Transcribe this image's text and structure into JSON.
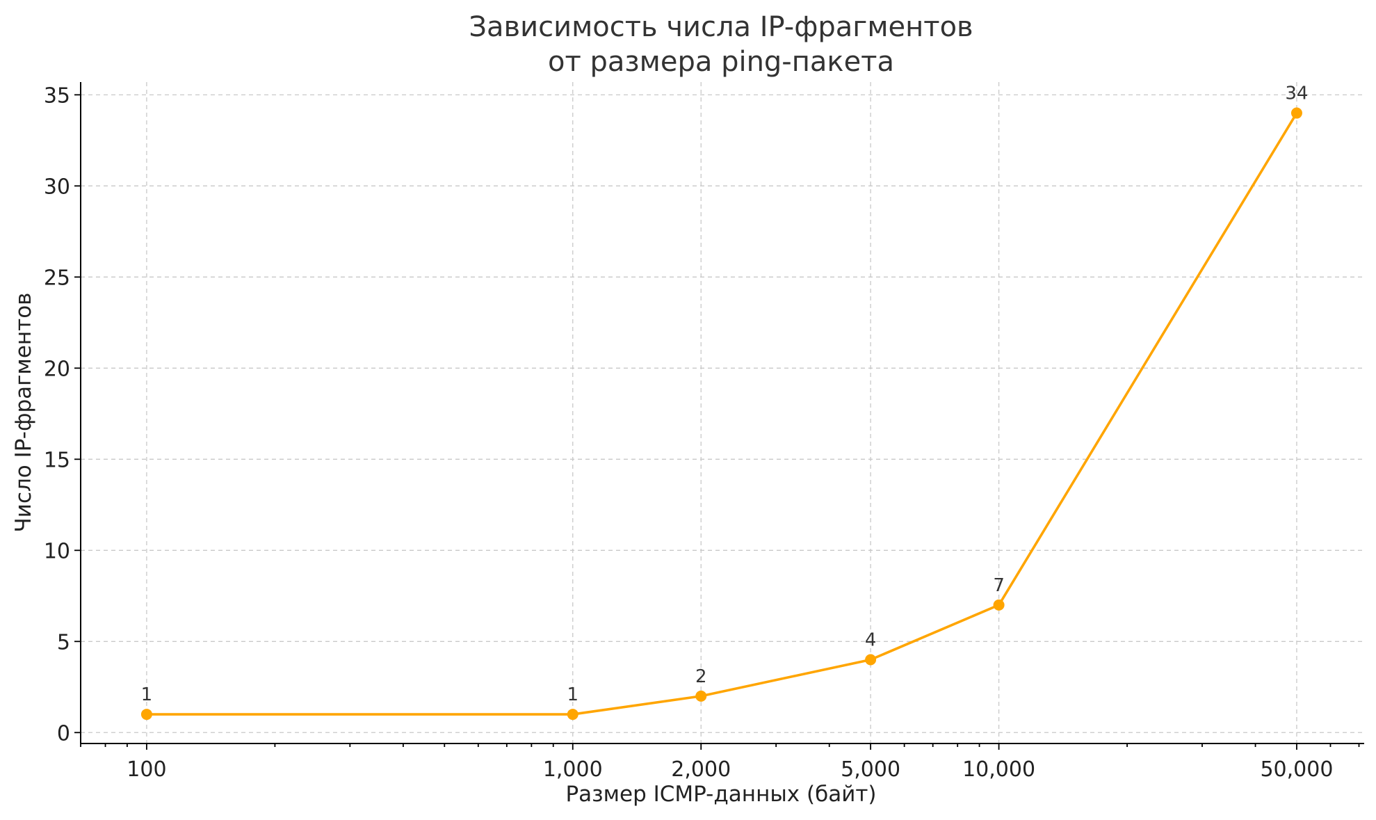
{
  "chart_data": {
    "type": "line",
    "title": [
      "Зависимость числа IP-фрагментов",
      "от размера ping-пакета"
    ],
    "xlabel": "Размер ICMP-данных (байт)",
    "ylabel": "Число IP-фрагментов",
    "x_scale": "log",
    "xlim": [
      70,
      72000
    ],
    "ylim": [
      -0.6,
      35.7
    ],
    "x_ticks": [
      100,
      1000,
      2000,
      5000,
      10000,
      50000
    ],
    "x_tick_labels": [
      "100",
      "1,000",
      "2,000",
      "5,000",
      "10,000",
      "50,000"
    ],
    "y_ticks": [
      0,
      5,
      10,
      15,
      20,
      25,
      30,
      35
    ],
    "y_tick_labels": [
      "0",
      "5",
      "10",
      "15",
      "20",
      "25",
      "30",
      "35"
    ],
    "grid": true,
    "series": [
      {
        "color": "#FFA500",
        "x": [
          100,
          1000,
          2000,
          5000,
          10000,
          50000
        ],
        "y": [
          1,
          1,
          2,
          4,
          7,
          34
        ],
        "data_labels": [
          "1",
          "1",
          "2",
          "4",
          "7",
          "34"
        ]
      }
    ]
  }
}
